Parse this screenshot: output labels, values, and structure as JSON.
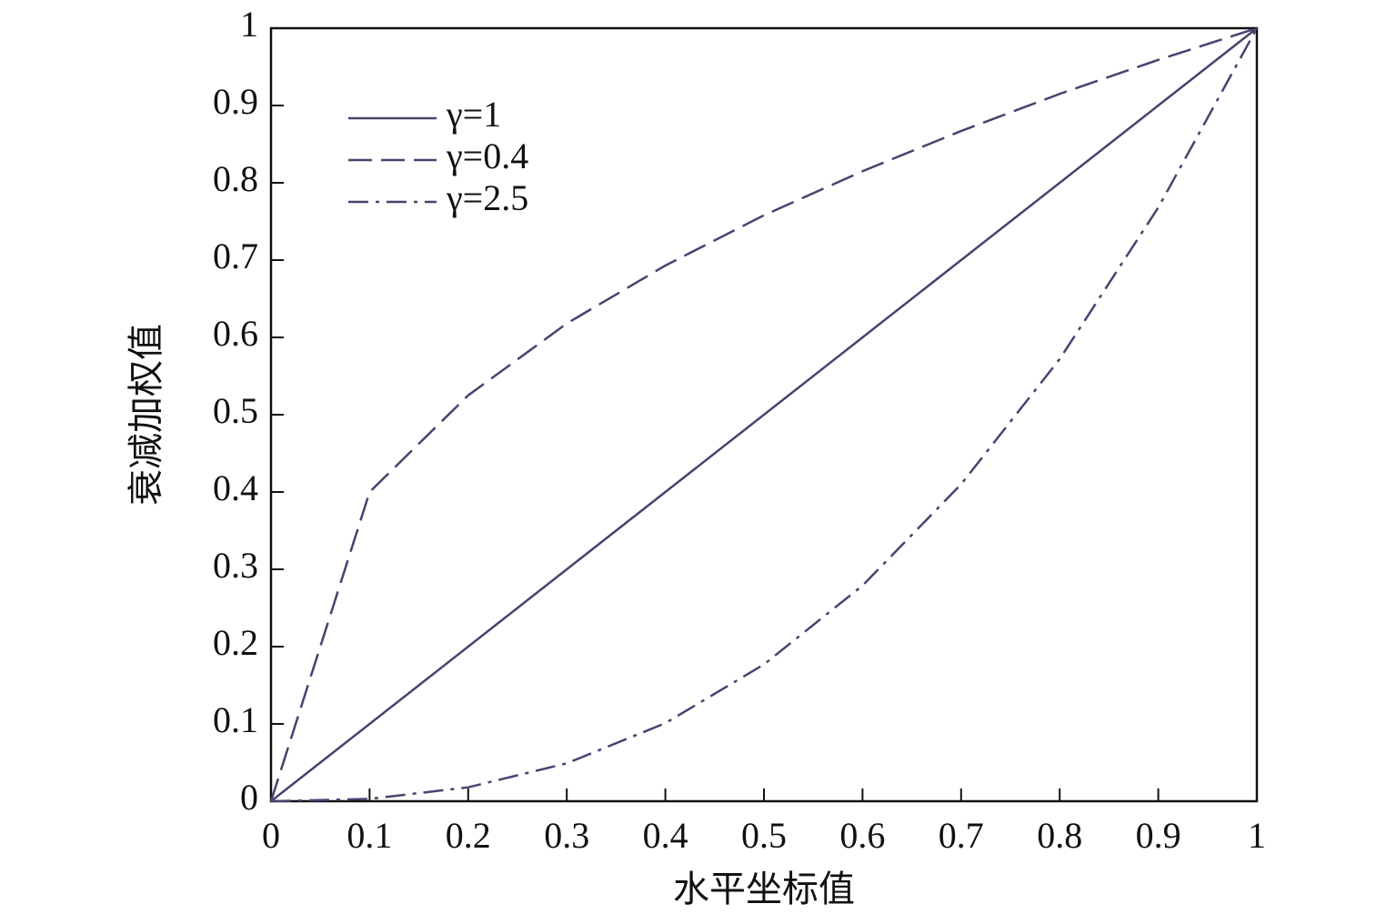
{
  "chart_data": {
    "type": "line",
    "x_label": "水平坐标值",
    "y_label": "衰减加权值",
    "x": [
      0,
      0.1,
      0.2,
      0.3,
      0.4,
      0.5,
      0.6,
      0.7,
      0.8,
      0.9,
      1
    ],
    "series": [
      {
        "name": "γ=1",
        "color": "#4b4170",
        "dash": "solid",
        "values": [
          0,
          0.1,
          0.2,
          0.3,
          0.4,
          0.5,
          0.6,
          0.7,
          0.8,
          0.9,
          1
        ]
      },
      {
        "name": "γ=0.4",
        "color": "#4b4170",
        "dash": "dashed",
        "values": [
          0,
          0.4,
          0.525,
          0.618,
          0.693,
          0.758,
          0.815,
          0.867,
          0.915,
          0.959,
          1
        ]
      },
      {
        "name": "γ=2.5",
        "color": "#4b4170",
        "dash": "dashdot",
        "values": [
          0,
          0.003,
          0.018,
          0.049,
          0.101,
          0.177,
          0.279,
          0.41,
          0.572,
          0.768,
          1
        ]
      }
    ],
    "xlim": [
      0,
      1
    ],
    "ylim": [
      0,
      1
    ],
    "xticks": [
      0,
      0.1,
      0.2,
      0.3,
      0.4,
      0.5,
      0.6,
      0.7,
      0.8,
      0.9,
      1
    ],
    "yticks": [
      0,
      0.1,
      0.2,
      0.3,
      0.4,
      0.5,
      0.6,
      0.7,
      0.8,
      0.9,
      1
    ],
    "legend": "upper left",
    "grid": false
  }
}
